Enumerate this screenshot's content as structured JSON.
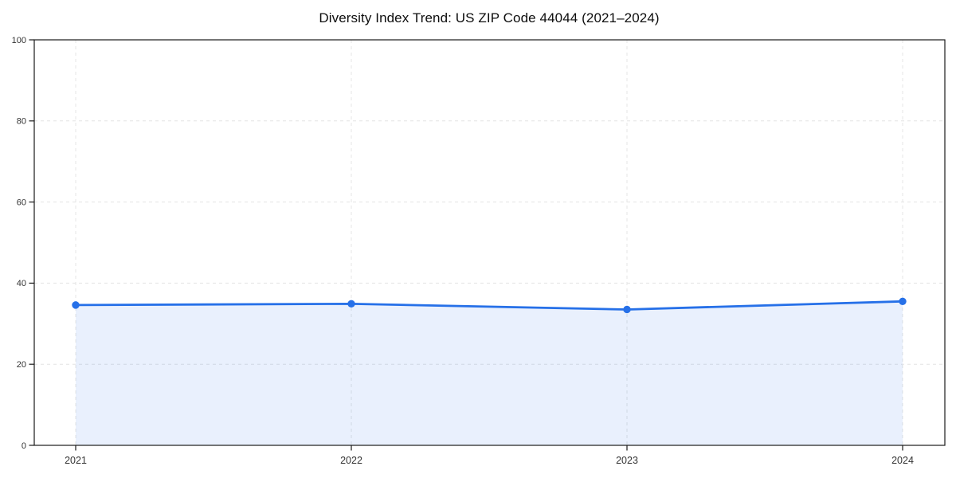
{
  "figure": {
    "title": "Diversity Index Trend: US ZIP Code 44044 (2021–2024)"
  },
  "chart_data": {
    "type": "line",
    "title": "Diversity Index Trend: US ZIP Code 44044 (2021–2024)",
    "x": [
      "2021",
      "2022",
      "2023",
      "2024"
    ],
    "series": [
      {
        "name": "Diversity Index",
        "values": [
          34.6,
          34.9,
          33.5,
          35.5
        ],
        "color": "#2670e8",
        "marker": "circle",
        "area_fill": true,
        "area_fill_opacity": 0.1
      }
    ],
    "xlabel": "",
    "ylabel": "",
    "ylim": [
      0,
      100
    ],
    "yticks": [
      0,
      20,
      40,
      60,
      80,
      100
    ],
    "grid": true,
    "grid_style": "dashed",
    "grid_color": "#e4e4e4",
    "axis_color": "#1a1a1a",
    "tick_label_color": "#333333",
    "legend": "none"
  }
}
